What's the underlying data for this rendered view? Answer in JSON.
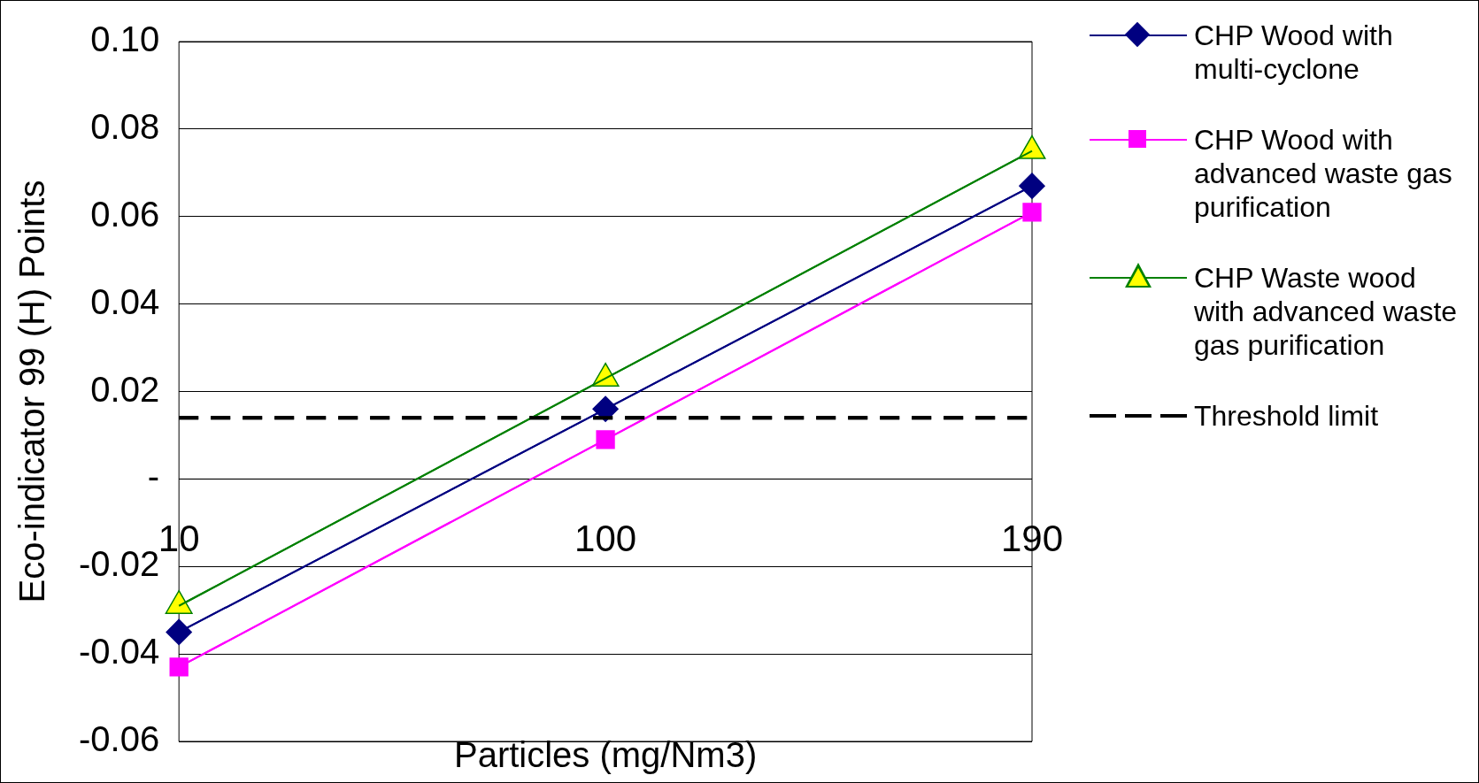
{
  "chart_data": {
    "type": "line",
    "xlabel": "Particles (mg/Nm3)",
    "ylabel": "Eco-indicator 99 (H) Points",
    "categories": [
      "10",
      "100",
      "190"
    ],
    "series": [
      {
        "name": "CHP Wood with multi-cyclone",
        "color": "#000080",
        "marker": "diamond",
        "values": [
          -0.035,
          0.016,
          0.067
        ]
      },
      {
        "name": "CHP Wood with advanced waste gas purification",
        "color": "#ff00ff",
        "marker": "square",
        "values": [
          -0.043,
          0.009,
          0.061
        ]
      },
      {
        "name": "CHP Waste wood with advanced waste gas purification",
        "color": "#008000",
        "colors": [
          "#ffff00",
          "#ffff00",
          "#ffff00"
        ],
        "marker": "triangle",
        "values": [
          -0.029,
          0.023,
          0.075
        ]
      },
      {
        "name": "Threshold limit",
        "color": "#000000",
        "marker": "none",
        "line_style": "dashed",
        "values": [
          0.014,
          0.014,
          0.014
        ]
      }
    ],
    "ylim": [
      -0.06,
      0.1
    ],
    "yticks": [
      {
        "value": -0.06,
        "label": "-0.06"
      },
      {
        "value": -0.04,
        "label": "-0.04"
      },
      {
        "value": -0.02,
        "label": "-0.02"
      },
      {
        "value": 0,
        "label": "-"
      },
      {
        "value": 0.02,
        "label": "0.02"
      },
      {
        "value": 0.04,
        "label": "0.04"
      },
      {
        "value": 0.06,
        "label": "0.06"
      },
      {
        "value": 0.08,
        "label": "0.08"
      },
      {
        "value": 0.1,
        "label": "0.10"
      }
    ],
    "grid": "y",
    "legend": "right"
  }
}
